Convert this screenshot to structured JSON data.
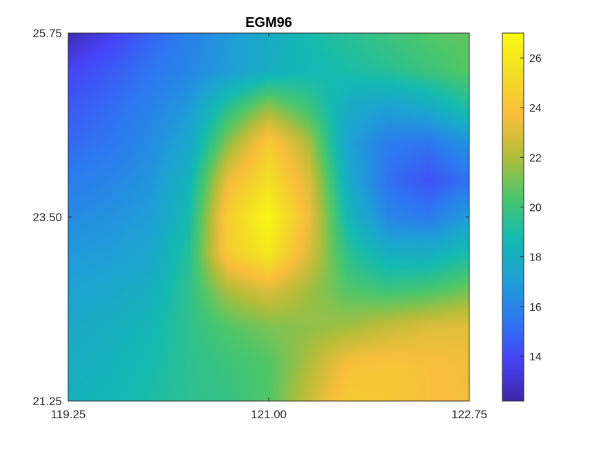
{
  "chart_data": {
    "type": "heatmap",
    "title": "EGM96",
    "xlabel": "",
    "ylabel": "",
    "x_ticks": [
      "119.25",
      "121.00",
      "122.75"
    ],
    "x_tick_values": [
      119.25,
      121.0,
      122.75
    ],
    "y_ticks": [
      "25.75",
      "23.50",
      "21.25"
    ],
    "y_tick_values": [
      25.75,
      23.5,
      21.25
    ],
    "xlim": [
      119.25,
      122.75
    ],
    "ylim": [
      21.25,
      25.75
    ],
    "colormap": "parula",
    "colorbar": {
      "range": [
        12.2,
        27.0
      ],
      "ticks": [
        "14",
        "16",
        "18",
        "20",
        "22",
        "24",
        "26"
      ],
      "tick_values": [
        14,
        16,
        18,
        20,
        22,
        24,
        26
      ],
      "placement": "right"
    },
    "grid": false,
    "x": [
      119.25,
      119.6,
      119.95,
      120.3,
      120.65,
      121.0,
      121.35,
      121.7,
      122.05,
      122.4,
      122.75
    ],
    "y": [
      25.75,
      25.3,
      24.85,
      24.4,
      23.95,
      23.5,
      23.05,
      22.6,
      22.15,
      21.7,
      21.25
    ],
    "z": [
      [
        12.5,
        13.6,
        14.8,
        15.8,
        16.8,
        17.8,
        18.8,
        19.4,
        20.0,
        20.5,
        20.8
      ],
      [
        13.8,
        14.5,
        15.3,
        16.0,
        17.0,
        18.0,
        18.6,
        19.0,
        19.4,
        20.0,
        20.6
      ],
      [
        14.5,
        15.0,
        15.8,
        16.8,
        19.5,
        21.5,
        20.0,
        17.8,
        17.2,
        17.8,
        19.2
      ],
      [
        15.0,
        15.4,
        16.2,
        17.5,
        21.5,
        24.5,
        22.0,
        17.2,
        15.6,
        15.3,
        16.5
      ],
      [
        15.6,
        16.0,
        16.6,
        18.3,
        23.5,
        25.5,
        23.0,
        17.8,
        15.2,
        14.3,
        15.2
      ],
      [
        16.2,
        16.5,
        17.0,
        18.8,
        24.7,
        26.8,
        23.5,
        18.5,
        16.0,
        15.5,
        17.0
      ],
      [
        16.8,
        17.0,
        17.5,
        19.3,
        24.5,
        26.0,
        23.0,
        19.5,
        18.0,
        18.0,
        19.0
      ],
      [
        17.3,
        17.6,
        18.0,
        19.6,
        22.0,
        23.0,
        21.8,
        20.5,
        20.0,
        20.3,
        21.0
      ],
      [
        17.7,
        18.0,
        18.5,
        19.6,
        20.5,
        21.2,
        21.5,
        21.8,
        22.5,
        23.0,
        23.2
      ],
      [
        18.0,
        18.3,
        18.8,
        19.5,
        20.0,
        20.5,
        22.0,
        23.8,
        24.0,
        23.8,
        23.5
      ],
      [
        18.2,
        18.5,
        19.0,
        19.5,
        19.8,
        20.5,
        22.5,
        24.5,
        24.3,
        23.8,
        23.6
      ]
    ]
  },
  "colors": {
    "parula_stops": [
      "#3e26a8",
      "#4743f8",
      "#2c7af0",
      "#1ea1d5",
      "#14bab0",
      "#4cc76b",
      "#b4bd3a",
      "#f9be3c",
      "#f3dd26",
      "#f9fb14"
    ]
  }
}
